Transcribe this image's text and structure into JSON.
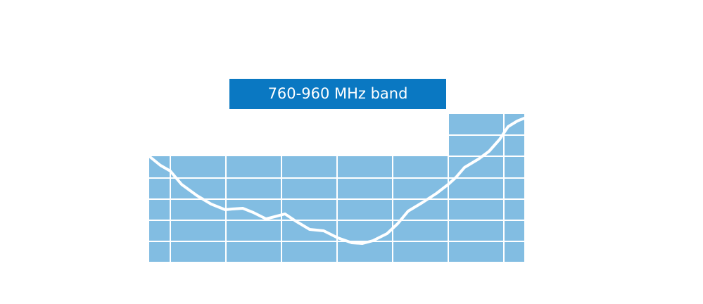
{
  "label": "760-960 MHz band"
}
